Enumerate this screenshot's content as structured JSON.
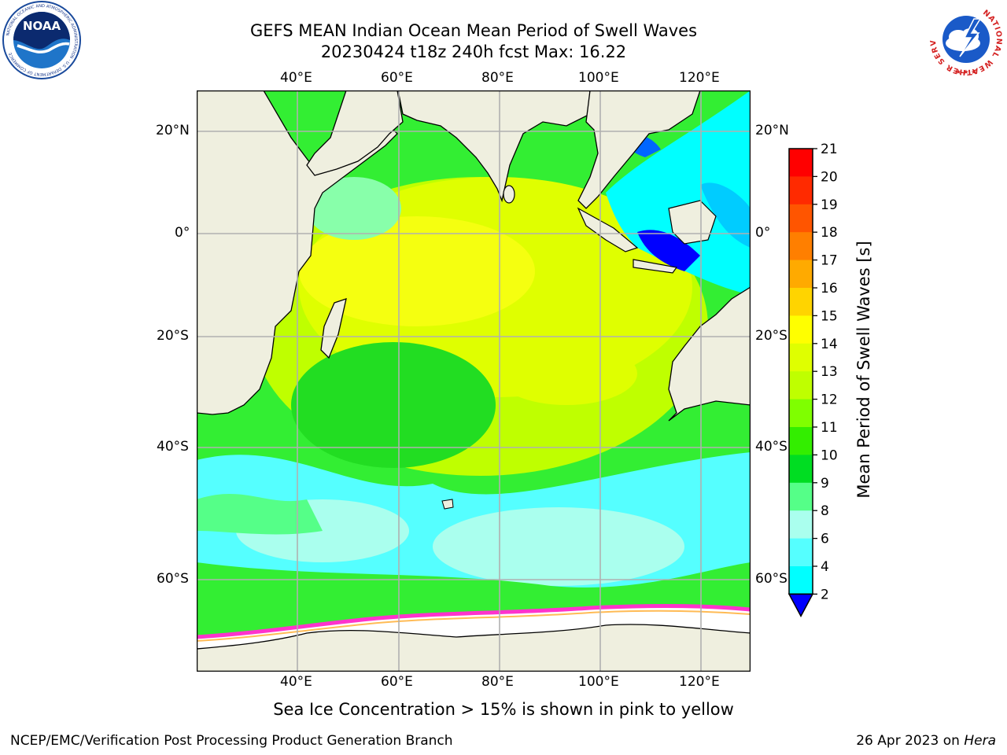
{
  "header": {
    "title": "GEFS MEAN Indian Ocean Mean Period of Swell Waves",
    "subtitle": "20230424 t18z 240h fcst   Max: 16.22"
  },
  "logos": {
    "noaa": {
      "text": "NOAA",
      "ring_text": "NATIONAL OCEANIC AND ATMOSPHERIC ADMINISTRATION · U.S. DEPARTMENT OF COMMERCE"
    },
    "nws": {
      "ring_text": "NATIONAL WEATHER SERVICE"
    }
  },
  "map": {
    "lon_labels": [
      "40°E",
      "60°E",
      "80°E",
      "100°E",
      "120°E"
    ],
    "lat_labels": [
      "20°N",
      "0°",
      "20°S",
      "40°S",
      "60°S"
    ],
    "colors": {
      "land": "#efefdf",
      "sea_ice": "#ffffff",
      "ice_edge": "#ff33cc",
      "grid": "#b0b0b0"
    }
  },
  "colorbar": {
    "title": "Mean Period of Swell Waves [s]",
    "ticks": [
      "21",
      "20",
      "19",
      "18",
      "17",
      "16",
      "15",
      "14",
      "13",
      "12",
      "11",
      "10",
      "9",
      "8",
      "6",
      "4",
      "2"
    ],
    "colors": [
      "#ff0000",
      "#ff2a00",
      "#ff5500",
      "#ff7f00",
      "#ffaa00",
      "#ffd400",
      "#ffff00",
      "#dfff00",
      "#bfff00",
      "#7fff00",
      "#33ee00",
      "#00dd22",
      "#55ff88",
      "#aaffee",
      "#55ffff",
      "#00ffff",
      "#00ccff",
      "#0066ff",
      "#0000ff"
    ]
  },
  "footer": {
    "note": "Sea Ice Concentration > 15% is shown in pink to yellow",
    "credit": "NCEP/EMC/Verification Post Processing Product Generation Branch",
    "date": "26 Apr 2023 on",
    "host": "Hera"
  }
}
